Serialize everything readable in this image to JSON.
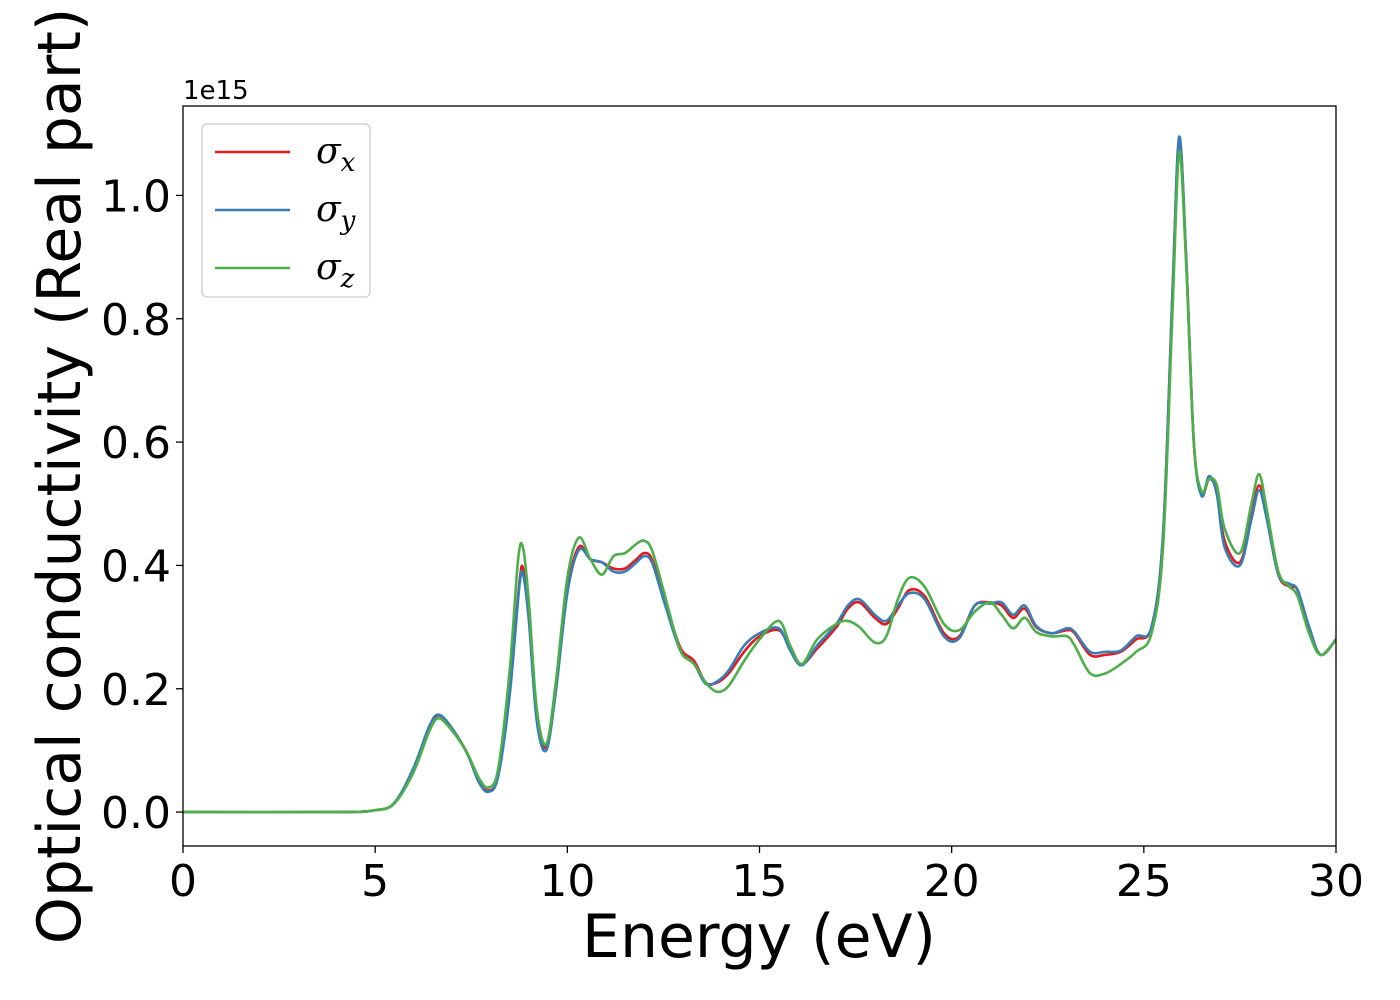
{
  "chart_data": {
    "type": "line",
    "title": "",
    "xlabel": "Energy (eV)",
    "ylabel": "Optical conductivity (Real part)",
    "y_offset_text": "1e15",
    "xlim": [
      0,
      30
    ],
    "ylim": [
      -0.055,
      1.145
    ],
    "x_ticks": [
      0,
      5,
      10,
      15,
      20,
      25,
      30
    ],
    "x_tick_labels": [
      "0",
      "5",
      "10",
      "15",
      "20",
      "25",
      "30"
    ],
    "y_ticks": [
      0.0,
      0.2,
      0.4,
      0.6,
      0.8,
      1.0
    ],
    "y_tick_labels": [
      "0.0",
      "0.2",
      "0.4",
      "0.6",
      "0.8",
      "1.0"
    ],
    "grid": false,
    "legend_position": "top-left",
    "series": [
      {
        "name": "σx",
        "symbol": "σ",
        "subscript": "x",
        "color": "#e41a1c",
        "points": [
          [
            0,
            0.0
          ],
          [
            4,
            0.0
          ],
          [
            5,
            0.003
          ],
          [
            5.5,
            0.015
          ],
          [
            6,
            0.07
          ],
          [
            6.4,
            0.135
          ],
          [
            6.65,
            0.157
          ],
          [
            7,
            0.135
          ],
          [
            7.4,
            0.095
          ],
          [
            7.7,
            0.05
          ],
          [
            7.95,
            0.035
          ],
          [
            8.2,
            0.06
          ],
          [
            8.5,
            0.2
          ],
          [
            8.75,
            0.37
          ],
          [
            8.85,
            0.395
          ],
          [
            9.0,
            0.32
          ],
          [
            9.2,
            0.16
          ],
          [
            9.45,
            0.105
          ],
          [
            9.7,
            0.2
          ],
          [
            10.0,
            0.36
          ],
          [
            10.3,
            0.43
          ],
          [
            10.6,
            0.41
          ],
          [
            10.9,
            0.405
          ],
          [
            11.2,
            0.395
          ],
          [
            11.5,
            0.395
          ],
          [
            11.8,
            0.41
          ],
          [
            12.0,
            0.42
          ],
          [
            12.2,
            0.41
          ],
          [
            12.5,
            0.35
          ],
          [
            12.8,
            0.29
          ],
          [
            13.0,
            0.26
          ],
          [
            13.3,
            0.245
          ],
          [
            13.6,
            0.21
          ],
          [
            13.9,
            0.21
          ],
          [
            14.2,
            0.225
          ],
          [
            14.6,
            0.26
          ],
          [
            15.0,
            0.285
          ],
          [
            15.5,
            0.295
          ],
          [
            15.8,
            0.265
          ],
          [
            16.1,
            0.24
          ],
          [
            16.5,
            0.265
          ],
          [
            17.0,
            0.3
          ],
          [
            17.3,
            0.33
          ],
          [
            17.6,
            0.34
          ],
          [
            18.0,
            0.315
          ],
          [
            18.3,
            0.305
          ],
          [
            18.6,
            0.33
          ],
          [
            18.9,
            0.36
          ],
          [
            19.3,
            0.35
          ],
          [
            19.8,
            0.29
          ],
          [
            20.2,
            0.285
          ],
          [
            20.6,
            0.335
          ],
          [
            21.0,
            0.34
          ],
          [
            21.3,
            0.335
          ],
          [
            21.6,
            0.315
          ],
          [
            21.9,
            0.33
          ],
          [
            22.2,
            0.3
          ],
          [
            22.6,
            0.29
          ],
          [
            23.0,
            0.295
          ],
          [
            23.2,
            0.29
          ],
          [
            23.6,
            0.255
          ],
          [
            24.0,
            0.255
          ],
          [
            24.4,
            0.26
          ],
          [
            24.8,
            0.28
          ],
          [
            25.2,
            0.3
          ],
          [
            25.5,
            0.45
          ],
          [
            25.75,
            0.85
          ],
          [
            25.92,
            1.09
          ],
          [
            26.1,
            0.9
          ],
          [
            26.3,
            0.6
          ],
          [
            26.5,
            0.515
          ],
          [
            26.7,
            0.54
          ],
          [
            26.9,
            0.52
          ],
          [
            27.1,
            0.44
          ],
          [
            27.5,
            0.405
          ],
          [
            27.8,
            0.48
          ],
          [
            28.0,
            0.53
          ],
          [
            28.2,
            0.48
          ],
          [
            28.5,
            0.385
          ],
          [
            28.8,
            0.365
          ],
          [
            29.0,
            0.36
          ],
          [
            29.3,
            0.3
          ],
          [
            29.6,
            0.255
          ],
          [
            30.0,
            0.28
          ]
        ]
      },
      {
        "name": "σy",
        "symbol": "σ",
        "subscript": "y",
        "color": "#377eb8",
        "points": [
          [
            0,
            0.0
          ],
          [
            4,
            0.0
          ],
          [
            5,
            0.003
          ],
          [
            5.5,
            0.015
          ],
          [
            6,
            0.072
          ],
          [
            6.4,
            0.138
          ],
          [
            6.65,
            0.158
          ],
          [
            7,
            0.136
          ],
          [
            7.4,
            0.094
          ],
          [
            7.7,
            0.048
          ],
          [
            7.95,
            0.033
          ],
          [
            8.2,
            0.058
          ],
          [
            8.5,
            0.19
          ],
          [
            8.75,
            0.365
          ],
          [
            8.85,
            0.385
          ],
          [
            9.0,
            0.31
          ],
          [
            9.2,
            0.15
          ],
          [
            9.45,
            0.1
          ],
          [
            9.7,
            0.195
          ],
          [
            10.0,
            0.355
          ],
          [
            10.3,
            0.425
          ],
          [
            10.6,
            0.41
          ],
          [
            10.9,
            0.405
          ],
          [
            11.2,
            0.39
          ],
          [
            11.5,
            0.39
          ],
          [
            11.8,
            0.405
          ],
          [
            12.0,
            0.415
          ],
          [
            12.2,
            0.405
          ],
          [
            12.5,
            0.345
          ],
          [
            12.8,
            0.285
          ],
          [
            13.0,
            0.255
          ],
          [
            13.3,
            0.24
          ],
          [
            13.6,
            0.208
          ],
          [
            13.9,
            0.212
          ],
          [
            14.2,
            0.23
          ],
          [
            14.6,
            0.27
          ],
          [
            15.0,
            0.29
          ],
          [
            15.5,
            0.298
          ],
          [
            15.8,
            0.262
          ],
          [
            16.1,
            0.238
          ],
          [
            16.5,
            0.27
          ],
          [
            17.0,
            0.305
          ],
          [
            17.3,
            0.335
          ],
          [
            17.6,
            0.345
          ],
          [
            18.0,
            0.32
          ],
          [
            18.3,
            0.31
          ],
          [
            18.6,
            0.335
          ],
          [
            18.9,
            0.355
          ],
          [
            19.3,
            0.345
          ],
          [
            19.8,
            0.285
          ],
          [
            20.2,
            0.282
          ],
          [
            20.6,
            0.335
          ],
          [
            21.0,
            0.338
          ],
          [
            21.3,
            0.34
          ],
          [
            21.6,
            0.32
          ],
          [
            21.9,
            0.335
          ],
          [
            22.2,
            0.302
          ],
          [
            22.6,
            0.29
          ],
          [
            23.0,
            0.298
          ],
          [
            23.2,
            0.292
          ],
          [
            23.6,
            0.26
          ],
          [
            24.0,
            0.26
          ],
          [
            24.4,
            0.262
          ],
          [
            24.8,
            0.285
          ],
          [
            25.2,
            0.3
          ],
          [
            25.5,
            0.45
          ],
          [
            25.75,
            0.85
          ],
          [
            25.92,
            1.095
          ],
          [
            26.1,
            0.9
          ],
          [
            26.3,
            0.6
          ],
          [
            26.5,
            0.513
          ],
          [
            26.7,
            0.545
          ],
          [
            26.9,
            0.515
          ],
          [
            27.1,
            0.43
          ],
          [
            27.5,
            0.4
          ],
          [
            27.8,
            0.475
          ],
          [
            28.0,
            0.522
          ],
          [
            28.2,
            0.475
          ],
          [
            28.5,
            0.385
          ],
          [
            28.8,
            0.37
          ],
          [
            29.0,
            0.36
          ],
          [
            29.3,
            0.3
          ],
          [
            29.6,
            0.255
          ],
          [
            30.0,
            0.28
          ]
        ]
      },
      {
        "name": "σz",
        "symbol": "σ",
        "subscript": "z",
        "color": "#4daf4a",
        "points": [
          [
            0,
            0.0
          ],
          [
            4,
            0.0
          ],
          [
            5,
            0.003
          ],
          [
            5.5,
            0.014
          ],
          [
            6,
            0.065
          ],
          [
            6.4,
            0.13
          ],
          [
            6.65,
            0.152
          ],
          [
            7,
            0.132
          ],
          [
            7.4,
            0.095
          ],
          [
            7.7,
            0.055
          ],
          [
            7.95,
            0.04
          ],
          [
            8.2,
            0.07
          ],
          [
            8.5,
            0.23
          ],
          [
            8.72,
            0.41
          ],
          [
            8.85,
            0.428
          ],
          [
            9.0,
            0.34
          ],
          [
            9.2,
            0.17
          ],
          [
            9.45,
            0.11
          ],
          [
            9.7,
            0.21
          ],
          [
            10.0,
            0.38
          ],
          [
            10.3,
            0.445
          ],
          [
            10.6,
            0.41
          ],
          [
            10.9,
            0.385
          ],
          [
            11.2,
            0.415
          ],
          [
            11.5,
            0.42
          ],
          [
            11.8,
            0.435
          ],
          [
            12.0,
            0.44
          ],
          [
            12.2,
            0.425
          ],
          [
            12.5,
            0.36
          ],
          [
            12.8,
            0.29
          ],
          [
            13.0,
            0.255
          ],
          [
            13.3,
            0.24
          ],
          [
            13.6,
            0.21
          ],
          [
            13.9,
            0.195
          ],
          [
            14.2,
            0.205
          ],
          [
            14.6,
            0.245
          ],
          [
            15.0,
            0.28
          ],
          [
            15.5,
            0.31
          ],
          [
            15.8,
            0.27
          ],
          [
            16.1,
            0.24
          ],
          [
            16.5,
            0.28
          ],
          [
            17.0,
            0.305
          ],
          [
            17.3,
            0.31
          ],
          [
            17.6,
            0.3
          ],
          [
            18.0,
            0.275
          ],
          [
            18.3,
            0.285
          ],
          [
            18.6,
            0.345
          ],
          [
            18.9,
            0.38
          ],
          [
            19.3,
            0.365
          ],
          [
            19.8,
            0.305
          ],
          [
            20.2,
            0.295
          ],
          [
            20.6,
            0.325
          ],
          [
            21.0,
            0.34
          ],
          [
            21.3,
            0.32
          ],
          [
            21.6,
            0.298
          ],
          [
            21.9,
            0.315
          ],
          [
            22.2,
            0.292
          ],
          [
            22.6,
            0.285
          ],
          [
            23.0,
            0.285
          ],
          [
            23.2,
            0.27
          ],
          [
            23.6,
            0.225
          ],
          [
            24.0,
            0.225
          ],
          [
            24.4,
            0.24
          ],
          [
            24.8,
            0.26
          ],
          [
            25.2,
            0.29
          ],
          [
            25.5,
            0.43
          ],
          [
            25.75,
            0.82
          ],
          [
            25.92,
            1.07
          ],
          [
            26.1,
            0.89
          ],
          [
            26.3,
            0.6
          ],
          [
            26.5,
            0.52
          ],
          [
            26.7,
            0.54
          ],
          [
            26.9,
            0.53
          ],
          [
            27.1,
            0.46
          ],
          [
            27.5,
            0.42
          ],
          [
            27.8,
            0.5
          ],
          [
            28.0,
            0.548
          ],
          [
            28.2,
            0.49
          ],
          [
            28.5,
            0.39
          ],
          [
            28.8,
            0.365
          ],
          [
            29.0,
            0.35
          ],
          [
            29.3,
            0.29
          ],
          [
            29.6,
            0.255
          ],
          [
            30.0,
            0.28
          ]
        ]
      }
    ]
  }
}
